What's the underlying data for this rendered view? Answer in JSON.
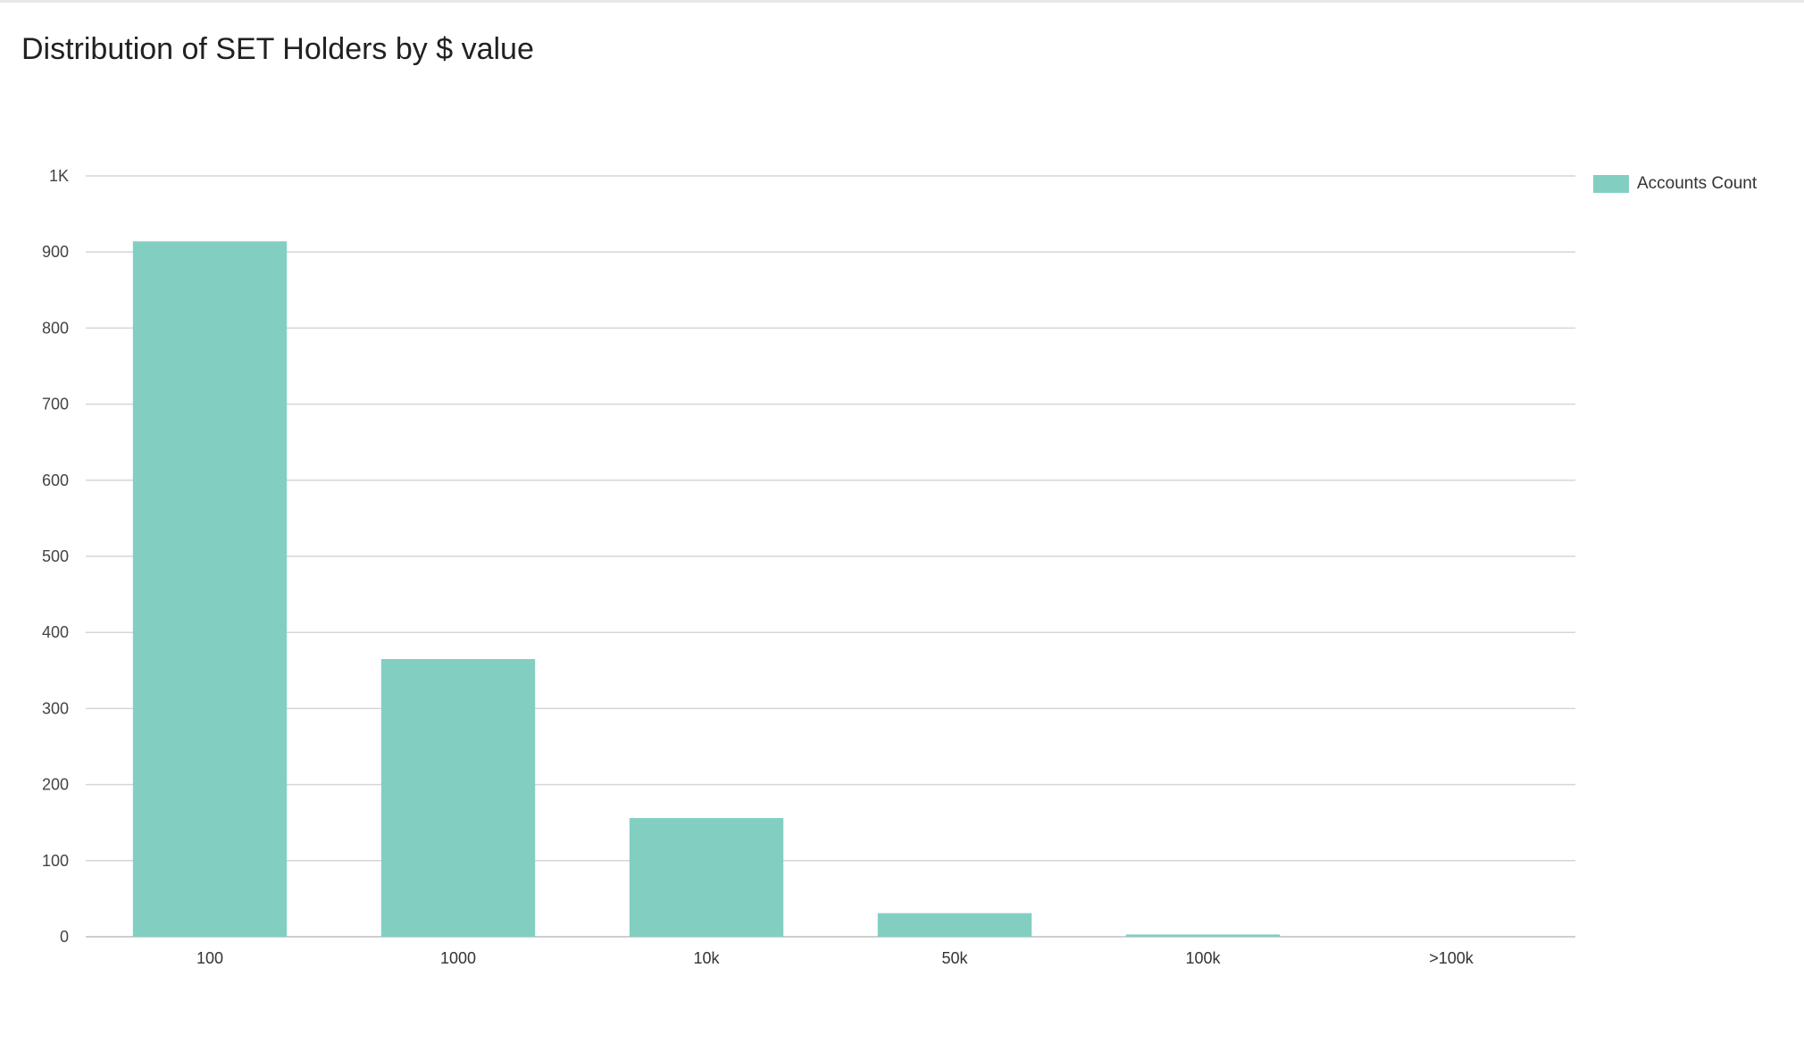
{
  "chart_data": {
    "type": "bar",
    "title": "Distribution of SET Holders by $ value",
    "categories": [
      "100",
      "1000",
      "10k",
      "50k",
      "100k",
      ">100k"
    ],
    "series": [
      {
        "name": "Accounts Count",
        "color": "#82cfc2",
        "values": [
          914,
          365,
          156,
          31,
          3,
          0
        ]
      }
    ],
    "ylim": [
      0,
      1000
    ],
    "yticks": [
      0,
      100,
      200,
      300,
      400,
      500,
      600,
      700,
      800,
      900,
      1000
    ],
    "ytick_labels": [
      "0",
      "100",
      "200",
      "300",
      "400",
      "500",
      "600",
      "700",
      "800",
      "900",
      "1K"
    ],
    "xlabel": "",
    "ylabel": "",
    "grid": true,
    "legend_position": "top-right"
  }
}
